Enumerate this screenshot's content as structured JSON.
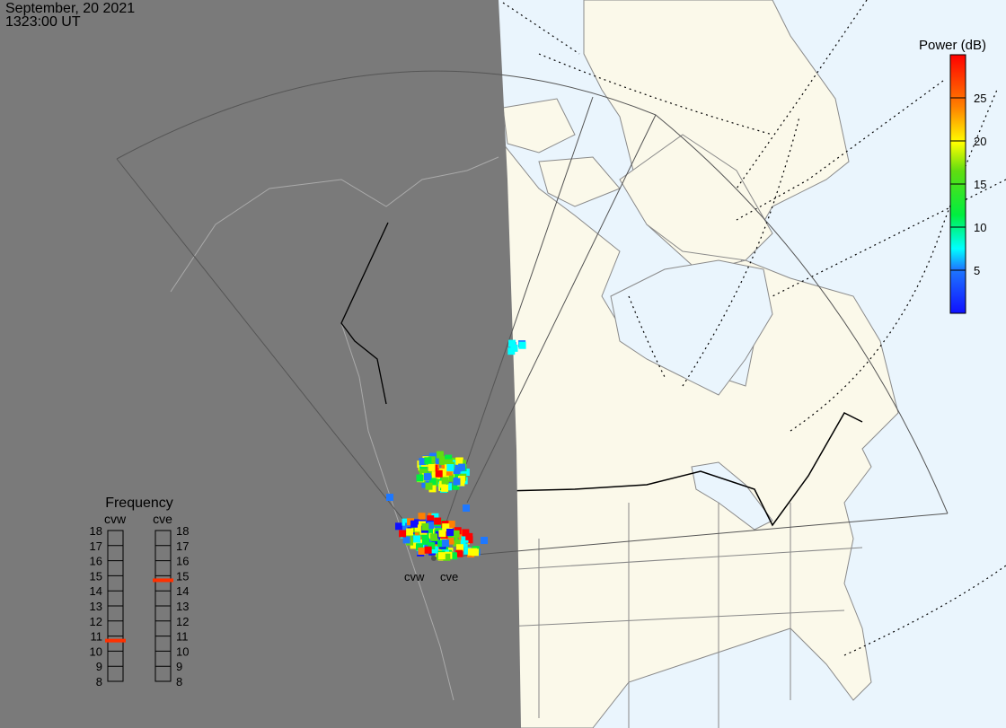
{
  "header": {
    "date": "September, 20 2021",
    "time": "1323:00 UT"
  },
  "colorbar": {
    "title": "Power (dB)",
    "ticks": [
      "5",
      "10",
      "15",
      "20",
      "25"
    ],
    "range": [
      0,
      30
    ],
    "colors": [
      "#1010ff",
      "#1e78ff",
      "#00ffff",
      "#00ee40",
      "#60dd10",
      "#ffff00",
      "#ff8000",
      "#ff0000"
    ]
  },
  "frequency": {
    "title": "Frequency",
    "unit_range": [
      8,
      18
    ],
    "ticks": [
      "18",
      "17",
      "16",
      "15",
      "14",
      "13",
      "12",
      "11",
      "10",
      "9",
      "8"
    ],
    "radars": [
      {
        "name": "cvw",
        "value_mhz": 10.7
      },
      {
        "name": "cve",
        "value_mhz": 14.7
      }
    ],
    "marker_color": "#ff3000"
  },
  "map": {
    "radar_labels": [
      "cvw",
      "cve"
    ],
    "night_color": "#7a7a7a",
    "ocean_color": "#eaf5fd",
    "land_color": "#fbf9ea"
  }
}
